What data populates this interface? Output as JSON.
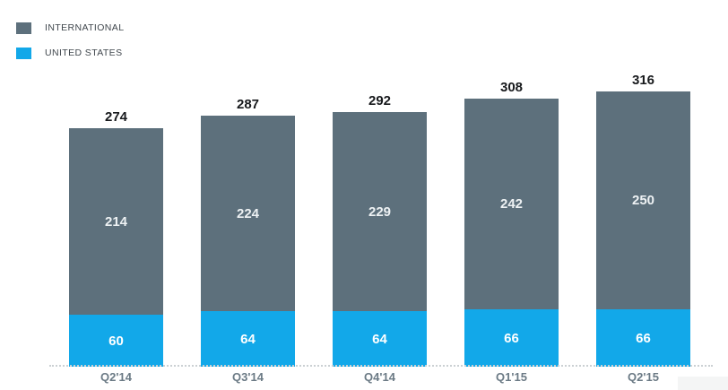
{
  "chart_data": {
    "type": "bar",
    "subtype": "stacked",
    "title": "",
    "categories": [
      "Q2'14",
      "Q3'14",
      "Q4'14",
      "Q1'15",
      "Q2'15"
    ],
    "series": [
      {
        "name": "INTERNATIONAL",
        "color": "#5d707c",
        "label_color": "#eef2f4",
        "values": [
          214,
          224,
          229,
          242,
          250
        ]
      },
      {
        "name": "UNITED STATES",
        "color": "#12a8e9",
        "label_color": "#ffffff",
        "values": [
          60,
          64,
          64,
          66,
          66
        ]
      }
    ],
    "totals": [
      274,
      287,
      292,
      308,
      316
    ],
    "stack_order_bottom_to_top": [
      "UNITED STATES",
      "INTERNATIONAL"
    ],
    "legend_position": "top-left",
    "grid": false,
    "axis": {
      "baseline_style": "dotted",
      "y_axis_visible": false,
      "ylim": [
        0,
        325
      ]
    }
  }
}
